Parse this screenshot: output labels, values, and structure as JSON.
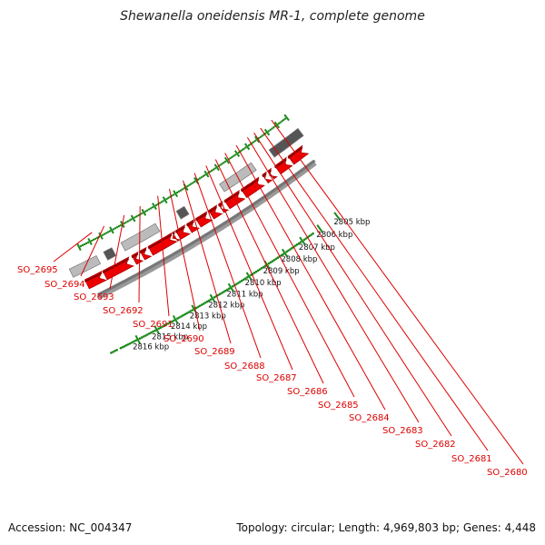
{
  "title": "Shewanella oneidensis MR-1, complete genome",
  "footer": {
    "accession": "Accession: NC_004347",
    "topology": "Topology: circular; Length: 4,969,803 bp; Genes: 4,448"
  },
  "ruler_labels": [
    "2816 kbp",
    "2815 kbp",
    "2814 kbp",
    "2813 kbp",
    "2812 kbp",
    "2811 kbp",
    "2810 kbp",
    "2809 kbp",
    "2808 kbp",
    "2807 kbp",
    "2806 kbp",
    "2805 kbp"
  ],
  "gene_labels": [
    "SO_2695",
    "SO_2694",
    "SO_2693",
    "SO_2692",
    "SO_2691",
    "SO_2690",
    "SO_2689",
    "SO_2688",
    "SO_2687",
    "SO_2686",
    "SO_2685",
    "SO_2684",
    "SO_2683",
    "SO_2682",
    "SO_2681",
    "SO_2680"
  ],
  "colors": {
    "gene": "#ee0000",
    "backbone": "#777777",
    "ruler": "#1a8a1a",
    "label_line": "#dd0000",
    "feature_light": "#bbbbbb",
    "feature_dark": "#555555"
  }
}
